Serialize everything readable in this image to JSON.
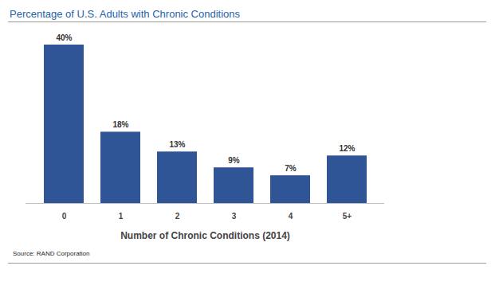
{
  "chart_data": {
    "type": "bar",
    "title": "Percentage of U.S. Adults with Chronic Conditions",
    "categories": [
      "0",
      "1",
      "2",
      "3",
      "4",
      "5+"
    ],
    "values": [
      40,
      18,
      13,
      9,
      7,
      12
    ],
    "value_labels": [
      "40%",
      "18%",
      "13%",
      "9%",
      "7%",
      "12%"
    ],
    "data_labels": true,
    "color": "#2f5597",
    "xlabel": "Number of Chronic Conditions (2014)",
    "caption": "Source: RAND Corporation",
    "ylim": [
      0,
      40
    ],
    "tick_labels": "x",
    "grid": false
  }
}
